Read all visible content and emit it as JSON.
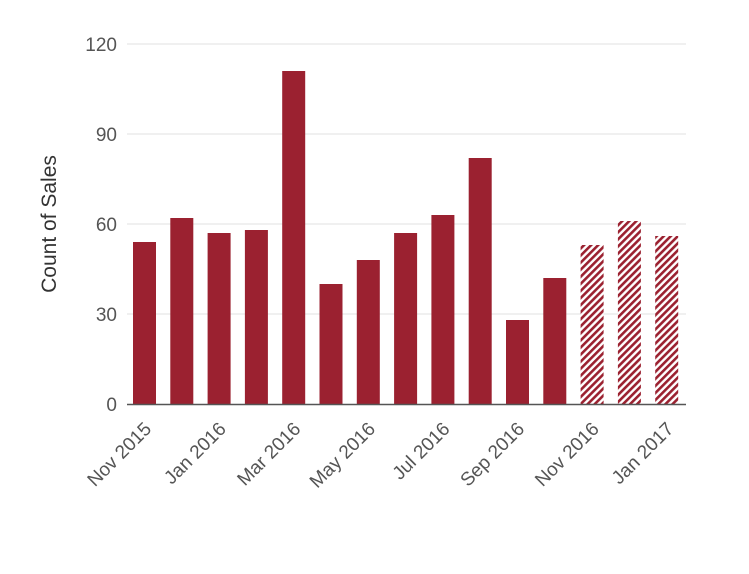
{
  "chart_data": {
    "type": "bar",
    "title": "",
    "xlabel": "",
    "ylabel": "Count of Sales",
    "ylim": [
      0,
      120
    ],
    "yticks": [
      0,
      30,
      60,
      90,
      120
    ],
    "grid": true,
    "categories": [
      "Nov 2015",
      "Dec 2015",
      "Jan 2016",
      "Feb 2016",
      "Mar 2016",
      "Apr 2016",
      "May 2016",
      "Jun 2016",
      "Jul 2016",
      "Aug 2016",
      "Sep 2016",
      "Oct 2016",
      "Nov 2016",
      "Dec 2016",
      "Jan 2017"
    ],
    "shown_tick_labels": [
      "Nov 2015",
      "Jan 2016",
      "Mar 2016",
      "May 2016",
      "Jul 2016",
      "Sep 2016",
      "Nov 2016",
      "Jan 2017"
    ],
    "values": [
      54,
      62,
      57,
      58,
      111,
      40,
      48,
      57,
      63,
      82,
      28,
      42,
      53,
      61,
      56
    ],
    "hatched_from": "Nov 2016",
    "colors": {
      "bar": "#9b2130",
      "hatch_stripe": "#9b2130",
      "grid": "#e0e0e0",
      "axis": "#555555",
      "text": "#555555",
      "ylabel": "#333333"
    }
  }
}
